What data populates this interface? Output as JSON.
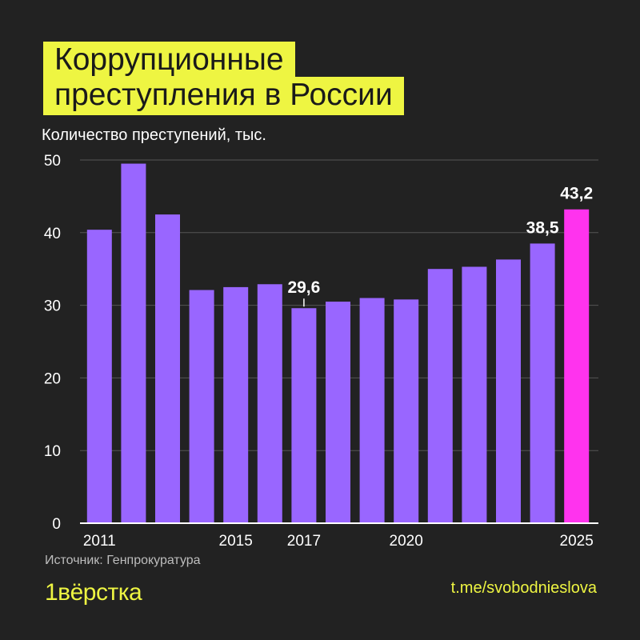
{
  "title": {
    "line1": "Коррупционные",
    "line2": "преступления в России"
  },
  "subtitle": "Количество преступений, тыс.",
  "source": "Источник: Генпрокуратура",
  "logo": "1вёрстка",
  "link": "t.me/svobodnieslova",
  "colors": {
    "background": "#222222",
    "accent_yellow": "#eef542",
    "bar": "#9966ff",
    "bar_highlight": "#ff33ee"
  },
  "chart_data": {
    "type": "bar",
    "title": "Коррупционные преступления в России",
    "ylabel": "Количество преступений, тыс.",
    "ylim": [
      0,
      50
    ],
    "yticks": [
      0,
      10,
      20,
      30,
      40,
      50
    ],
    "ytick_labels": [
      "0",
      "10",
      "20",
      "30",
      "40",
      "50"
    ],
    "categories": [
      2011,
      2012,
      2013,
      2014,
      2015,
      2016,
      2017,
      2018,
      2019,
      2020,
      2021,
      2022,
      2023,
      2024,
      2025
    ],
    "xtick_labels": [
      {
        "category": 2011,
        "label": "2011"
      },
      {
        "category": 2015,
        "label": "2015"
      },
      {
        "category": 2017,
        "label": "2017"
      },
      {
        "category": 2020,
        "label": "2020"
      },
      {
        "category": 2025,
        "label": "2025"
      }
    ],
    "values": [
      40.4,
      49.5,
      42.5,
      32.1,
      32.5,
      32.9,
      29.6,
      30.5,
      31.0,
      30.8,
      35.0,
      35.3,
      36.3,
      38.5,
      43.2
    ],
    "highlight_category": 2025,
    "data_labels": [
      {
        "category": 2017,
        "label": "29,6"
      },
      {
        "category": 2024,
        "label": "38,5"
      },
      {
        "category": 2025,
        "label": "43,2"
      }
    ],
    "grid": true
  }
}
